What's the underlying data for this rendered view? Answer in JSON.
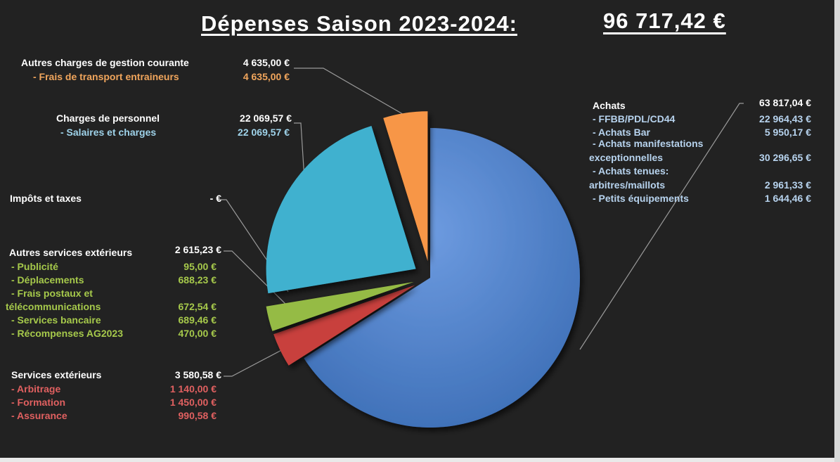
{
  "title": "Dépenses Saison 2023-2024:",
  "total": "96 717,42 €",
  "colors": {
    "background": "#222222",
    "achats": "#4a7ec4",
    "services_exterieurs": "#c8413c",
    "autres_services_exterieurs": "#95bb45",
    "impots_et_taxes": "#888888",
    "charges_de_personnel": "#3fb1cf",
    "autres_charges": "#f79646"
  },
  "groups": {
    "autres_charges": {
      "label": "Autres charges de gestion courante",
      "total": "4 635,00 €",
      "items": [
        {
          "label": "- Frais de transport entraineurs",
          "value": "4 635,00 €"
        }
      ]
    },
    "personnel": {
      "label": "Charges de personnel",
      "total": "22 069,57 €",
      "items": [
        {
          "label": "- Salaires et charges",
          "value": "22 069,57 €"
        }
      ]
    },
    "impots": {
      "label": "Impôts et taxes",
      "total": "-   €"
    },
    "autres_services": {
      "label": "Autres services extérieurs",
      "total": "2 615,23 €",
      "items": [
        {
          "label": "- Publicité",
          "value": "95,00 €"
        },
        {
          "label": "- Déplacements",
          "value": "688,23 €"
        },
        {
          "label": "- Frais postaux et",
          "label2": "télécommunications",
          "value": "672,54 €"
        },
        {
          "label": "- Services bancaire",
          "value": "689,46 €"
        },
        {
          "label": "- Récompenses AG2023",
          "value": "470,00 €"
        }
      ]
    },
    "services": {
      "label": "Services extérieurs",
      "total": "3 580,58 €",
      "items": [
        {
          "label": "- Arbitrage",
          "value": "1 140,00 €"
        },
        {
          "label": "- Formation",
          "value": "1 450,00 €"
        },
        {
          "label": "- Assurance",
          "value": "990,58 €"
        }
      ]
    },
    "achats": {
      "label": "Achats",
      "total": "63 817,04 €",
      "items": [
        {
          "label": "- FFBB/PDL/CD44",
          "value": "22 964,43 €"
        },
        {
          "label": "- Achats Bar",
          "value": "5 950,17 €"
        },
        {
          "label": "- Achats manifestations",
          "label2": "exceptionnelles",
          "value": "30 296,65 €"
        },
        {
          "label": "- Achats tenues:",
          "label2": "arbitres/maillots",
          "value": "2 961,33 €"
        },
        {
          "label": "- Petits équipements",
          "value": "1 644,46 €"
        }
      ]
    }
  },
  "chart_data": {
    "type": "pie",
    "categories": [
      "Achats",
      "Services extérieurs",
      "Autres services extérieurs",
      "Impôts et taxes",
      "Charges de personnel",
      "Autres charges de gestion courante"
    ],
    "values": [
      63817.04,
      3580.58,
      2615.23,
      0,
      22069.57,
      4635.0
    ],
    "exploded": true,
    "legend": "none",
    "data_labels": "outside with leader lines"
  }
}
